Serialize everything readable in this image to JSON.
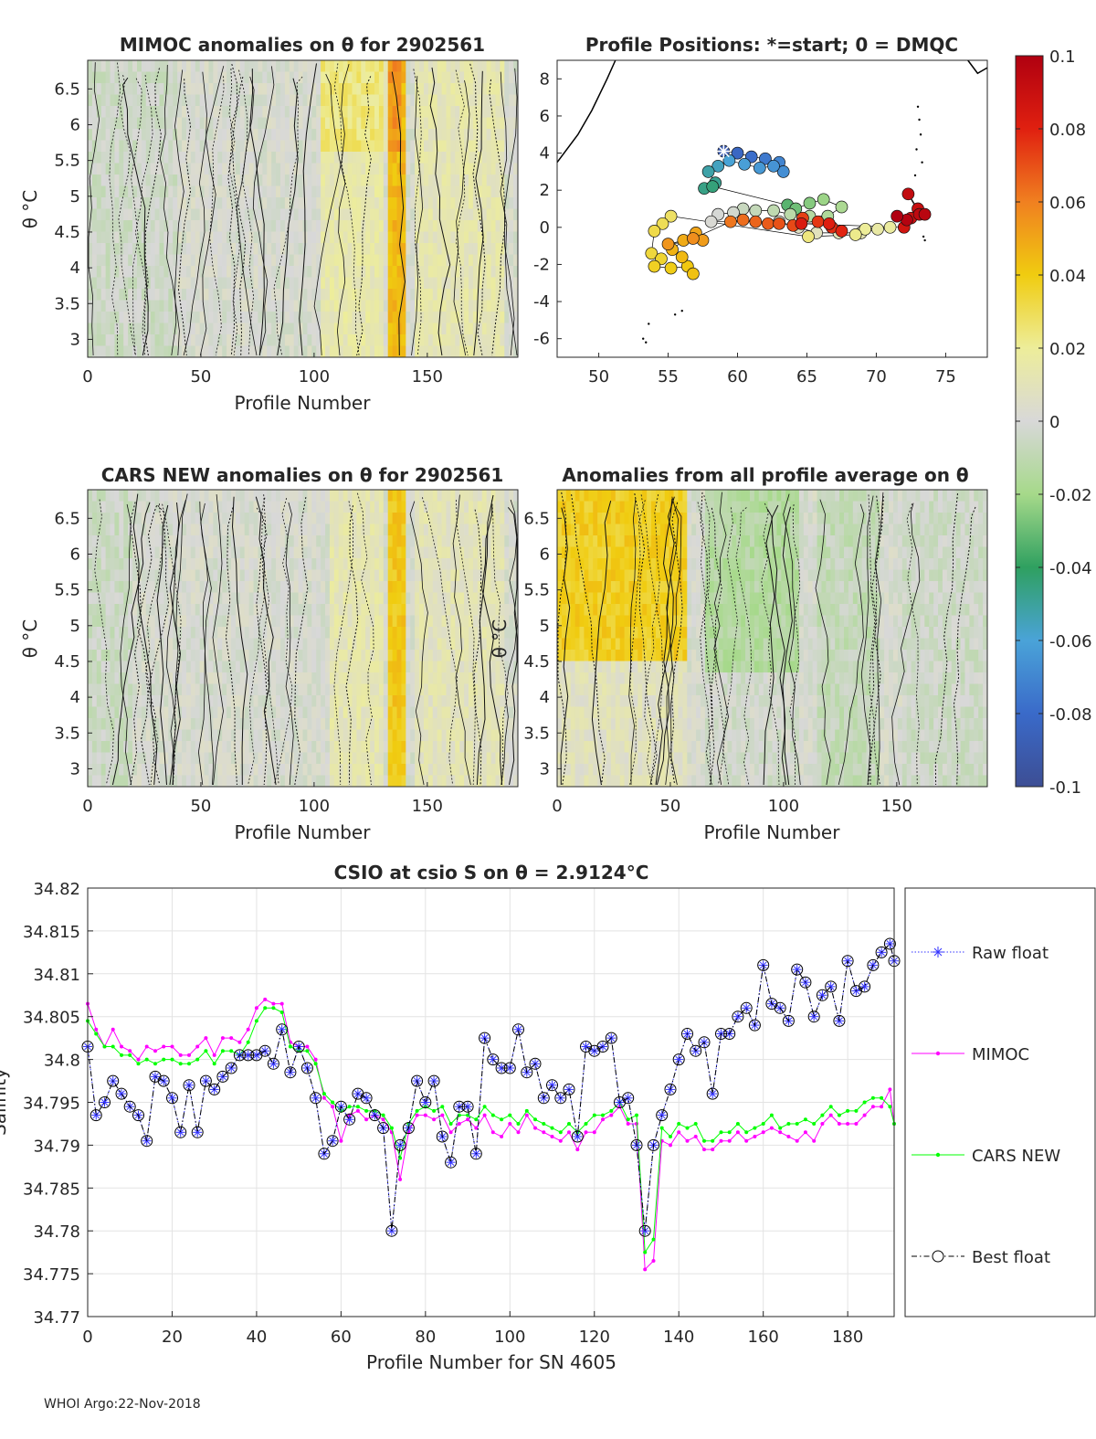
{
  "footer": "WHOI Argo:22-Nov-2018",
  "panels": {
    "mimoc": {
      "title": "MIMOC anomalies on θ  for 2902561",
      "xlabel": "Profile Number",
      "ylabel": "θ °C",
      "xticks": [
        "0",
        "50",
        "100",
        "150"
      ],
      "yticks": [
        "6.5",
        "6",
        "5.5",
        "5",
        "4.5",
        "4",
        "3.5",
        "3"
      ]
    },
    "positions": {
      "title": "Profile Positions: *=start; 0 = DMQC",
      "xticks": [
        "50",
        "55",
        "60",
        "65",
        "70",
        "75"
      ],
      "yticks": [
        "8",
        "6",
        "4",
        "2",
        "0",
        "-2",
        "-4",
        "-6"
      ]
    },
    "cars": {
      "title": "CARS NEW anomalies on θ for 2902561",
      "xlabel": "Profile Number",
      "ylabel": "θ °C",
      "xticks": [
        "0",
        "50",
        "100",
        "150"
      ],
      "yticks": [
        "6.5",
        "6",
        "5.5",
        "5",
        "4.5",
        "4",
        "3.5",
        "3"
      ]
    },
    "allavg": {
      "title": "Anomalies from all profile average on θ",
      "xlabel": "Profile Number",
      "ylabel": "θ °C",
      "xticks": [
        "0",
        "50",
        "100",
        "150"
      ],
      "yticks": [
        "6.5",
        "6",
        "5.5",
        "5",
        "4.5",
        "4",
        "3.5",
        "3"
      ]
    }
  },
  "colorbar": {
    "ticks": [
      "0.1",
      "0.08",
      "0.06",
      "0.04",
      "0.02",
      "0",
      "-0.02",
      "-0.04",
      "-0.06",
      "-0.08",
      "-0.1"
    ],
    "range": [
      -0.1,
      0.1
    ]
  },
  "chart_data": {
    "type": "line",
    "title": "CSIO at csio S on θ = 2.9124°C",
    "xlabel": "Profile Number for SN 4605",
    "ylabel": "Salinity",
    "xlim": [
      0,
      191
    ],
    "ylim": [
      34.77,
      34.82
    ],
    "xticks": [
      "0",
      "20",
      "40",
      "60",
      "80",
      "100",
      "120",
      "140",
      "160",
      "180"
    ],
    "yticks": [
      "34.82",
      "34.815",
      "34.81",
      "34.805",
      "34.8",
      "34.795",
      "34.79",
      "34.785",
      "34.78",
      "34.775",
      "34.77"
    ],
    "x": [
      0,
      2,
      4,
      6,
      8,
      10,
      12,
      14,
      16,
      18,
      20,
      22,
      24,
      26,
      28,
      30,
      32,
      34,
      36,
      38,
      40,
      42,
      44,
      46,
      48,
      50,
      52,
      54,
      56,
      58,
      60,
      62,
      64,
      66,
      68,
      70,
      72,
      74,
      76,
      78,
      80,
      82,
      84,
      86,
      88,
      90,
      92,
      94,
      96,
      98,
      100,
      102,
      104,
      106,
      108,
      110,
      112,
      114,
      116,
      118,
      120,
      122,
      124,
      126,
      128,
      130,
      132,
      134,
      136,
      138,
      140,
      142,
      144,
      146,
      148,
      150,
      152,
      154,
      156,
      158,
      160,
      162,
      164,
      166,
      168,
      170,
      172,
      174,
      176,
      178,
      180,
      182,
      184,
      186,
      188,
      190,
      191
    ],
    "series": [
      {
        "name": "Raw float",
        "color": "#3333ff",
        "values": [
          34.8015,
          34.7935,
          34.795,
          34.7975,
          34.796,
          34.7945,
          34.7935,
          34.7905,
          34.798,
          34.7975,
          34.7955,
          34.7915,
          34.797,
          34.7915,
          34.7975,
          34.7965,
          34.798,
          34.799,
          34.8005,
          34.8005,
          34.8005,
          34.801,
          34.7995,
          34.8035,
          34.7985,
          34.8015,
          34.799,
          34.7955,
          34.789,
          34.7905,
          34.7945,
          34.793,
          34.796,
          34.7955,
          34.7935,
          34.792,
          34.78,
          34.79,
          34.792,
          34.7975,
          34.795,
          34.7975,
          34.791,
          34.788,
          34.7945,
          34.7945,
          34.789,
          34.8025,
          34.8,
          34.799,
          34.799,
          34.8035,
          34.7985,
          34.7995,
          34.7955,
          34.797,
          34.7955,
          34.7965,
          34.791,
          34.8015,
          34.801,
          34.8015,
          34.8025,
          34.795,
          34.7955,
          34.79,
          34.78,
          34.79,
          34.7935,
          34.7965,
          34.8,
          34.803,
          34.801,
          34.802,
          34.796,
          34.803,
          34.803,
          34.805,
          34.806,
          34.804,
          34.811,
          34.8065,
          34.806,
          34.8045,
          34.8105,
          34.809,
          34.805,
          34.8075,
          34.8085,
          34.8045,
          34.8115,
          34.808,
          34.8085,
          34.811,
          34.8125,
          34.8135,
          34.8115
        ]
      },
      {
        "name": "MIMOC",
        "color": "#ff00ff",
        "values": [
          34.8065,
          34.8035,
          34.8015,
          34.8035,
          34.8015,
          34.801,
          34.8,
          34.8015,
          34.801,
          34.8015,
          34.8015,
          34.8005,
          34.8005,
          34.8015,
          34.8025,
          34.8005,
          34.8025,
          34.8025,
          34.802,
          34.8035,
          34.806,
          34.807,
          34.8065,
          34.8065,
          34.802,
          34.8015,
          34.8015,
          34.8,
          34.7955,
          34.7945,
          34.7905,
          34.7935,
          34.794,
          34.793,
          34.7935,
          34.793,
          34.7915,
          34.786,
          34.7915,
          34.7935,
          34.7935,
          34.793,
          34.7935,
          34.7915,
          34.7925,
          34.793,
          34.792,
          34.7935,
          34.7915,
          34.791,
          34.7925,
          34.7915,
          34.7935,
          34.792,
          34.7915,
          34.791,
          34.7905,
          34.7915,
          34.7895,
          34.7915,
          34.7915,
          34.793,
          34.7935,
          34.7945,
          34.7925,
          34.7925,
          34.7755,
          34.7765,
          34.7905,
          34.79,
          34.7915,
          34.7905,
          34.791,
          34.7895,
          34.7895,
          34.7905,
          34.7905,
          34.7915,
          34.7905,
          34.791,
          34.7915,
          34.792,
          34.7915,
          34.791,
          34.7905,
          34.7915,
          34.7905,
          34.7925,
          34.7935,
          34.7925,
          34.7925,
          34.7925,
          34.7935,
          34.7945,
          34.7945,
          34.7965,
          34.7925
        ]
      },
      {
        "name": "CARS NEW",
        "color": "#00ff00",
        "values": [
          34.8045,
          34.803,
          34.8015,
          34.8015,
          34.8005,
          34.8005,
          34.7995,
          34.8,
          34.7995,
          34.8,
          34.8,
          34.7995,
          34.7995,
          34.8,
          34.801,
          34.7995,
          34.801,
          34.801,
          34.8005,
          34.802,
          34.8045,
          34.806,
          34.806,
          34.8055,
          34.8015,
          34.801,
          34.801,
          34.7995,
          34.796,
          34.795,
          34.794,
          34.7945,
          34.7945,
          34.794,
          34.794,
          34.7935,
          34.792,
          34.7885,
          34.7925,
          34.794,
          34.7945,
          34.794,
          34.7945,
          34.7925,
          34.7935,
          34.7935,
          34.793,
          34.7945,
          34.7935,
          34.793,
          34.7935,
          34.7925,
          34.794,
          34.793,
          34.7925,
          34.792,
          34.7915,
          34.7925,
          34.7915,
          34.7925,
          34.7935,
          34.7935,
          34.794,
          34.795,
          34.793,
          34.7935,
          34.7775,
          34.779,
          34.792,
          34.791,
          34.7925,
          34.792,
          34.7925,
          34.7905,
          34.7905,
          34.7915,
          34.7915,
          34.7925,
          34.7915,
          34.792,
          34.7925,
          34.7935,
          34.792,
          34.7925,
          34.7925,
          34.793,
          34.7925,
          34.7935,
          34.7945,
          34.7935,
          34.794,
          34.794,
          34.795,
          34.7955,
          34.7955,
          34.7945,
          34.7925
        ]
      },
      {
        "name": "Best float",
        "color": "#000000",
        "values": [
          34.8015,
          34.7935,
          34.795,
          34.7975,
          34.796,
          34.7945,
          34.7935,
          34.7905,
          34.798,
          34.7975,
          34.7955,
          34.7915,
          34.797,
          34.7915,
          34.7975,
          34.7965,
          34.798,
          34.799,
          34.8005,
          34.8005,
          34.8005,
          34.801,
          34.7995,
          34.8035,
          34.7985,
          34.8015,
          34.799,
          34.7955,
          34.789,
          34.7905,
          34.7945,
          34.793,
          34.796,
          34.7955,
          34.7935,
          34.792,
          34.78,
          34.79,
          34.792,
          34.7975,
          34.795,
          34.7975,
          34.791,
          34.788,
          34.7945,
          34.7945,
          34.789,
          34.8025,
          34.8,
          34.799,
          34.799,
          34.8035,
          34.7985,
          34.7995,
          34.7955,
          34.797,
          34.7955,
          34.7965,
          34.791,
          34.8015,
          34.801,
          34.8015,
          34.8025,
          34.795,
          34.7955,
          34.79,
          34.78,
          34.79,
          34.7935,
          34.7965,
          34.8,
          34.803,
          34.801,
          34.802,
          34.796,
          34.803,
          34.803,
          34.805,
          34.806,
          34.804,
          34.811,
          34.8065,
          34.806,
          34.8045,
          34.8105,
          34.809,
          34.805,
          34.8075,
          34.8085,
          34.8045,
          34.8115,
          34.808,
          34.8085,
          34.811,
          34.8125,
          34.8135,
          34.8115
        ]
      }
    ],
    "legend": [
      "Raw float",
      "MIMOC",
      "CARS NEW",
      "Best float"
    ]
  },
  "positions_data": {
    "type": "scatter",
    "xlim": [
      47,
      78
    ],
    "ylim": [
      -7,
      9
    ],
    "start": [
      59,
      4.1
    ]
  }
}
